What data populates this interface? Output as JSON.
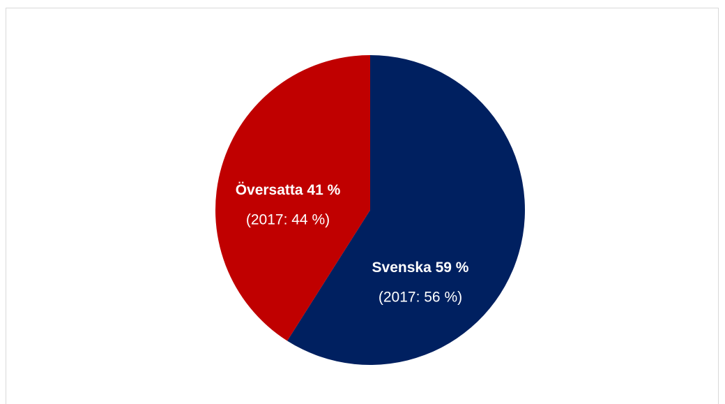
{
  "chart_data": {
    "type": "pie",
    "categories": [
      "Svenska",
      "Översatta"
    ],
    "values": [
      59,
      41
    ],
    "value_labels": [
      "59 %",
      "41 %"
    ],
    "annotations": [
      "(2017: 56 %)",
      "(2017: 44 %)"
    ],
    "colors": [
      "#002060",
      "#c00000"
    ]
  }
}
